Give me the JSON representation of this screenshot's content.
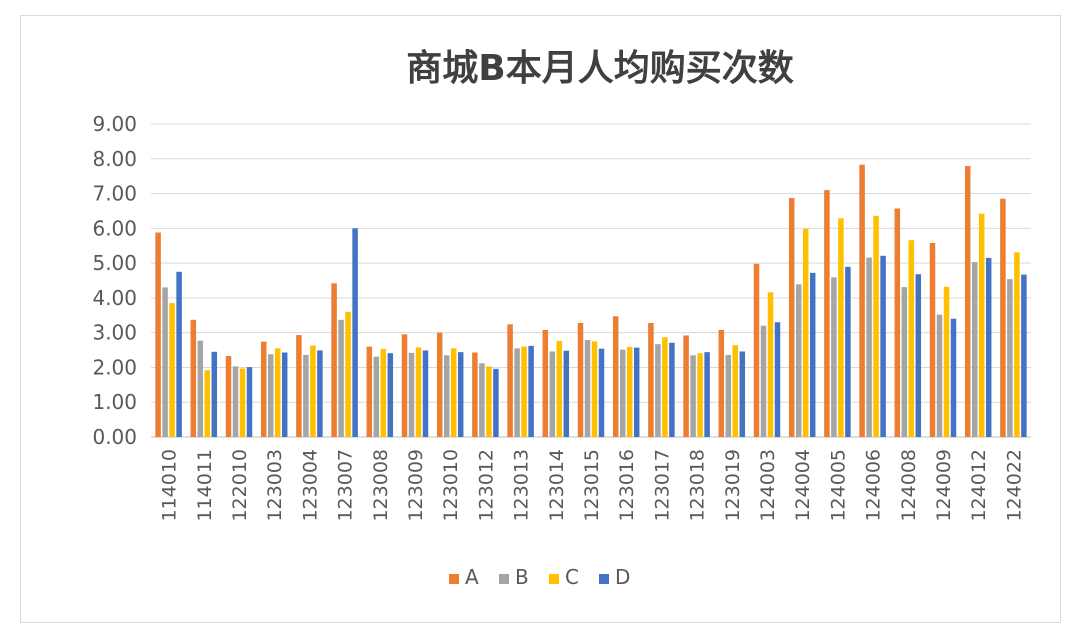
{
  "chart_data": {
    "type": "bar",
    "title": "商城B本月人均购买次数",
    "categories": [
      "114010",
      "114011",
      "122010",
      "123003",
      "123004",
      "123007",
      "123008",
      "123009",
      "123010",
      "123012",
      "123013",
      "123014",
      "123015",
      "123016",
      "123017",
      "123018",
      "123019",
      "124003",
      "124004",
      "124005",
      "124006",
      "124008",
      "124009",
      "124012",
      "124022"
    ],
    "series": [
      {
        "name": "A",
        "color": "#ED7D31",
        "values": [
          5.88,
          3.37,
          2.33,
          2.74,
          2.93,
          4.42,
          2.6,
          2.95,
          3.0,
          2.43,
          3.24,
          3.08,
          3.28,
          3.47,
          3.28,
          2.92,
          3.08,
          4.98,
          6.87,
          7.1,
          7.83,
          6.57,
          5.58,
          7.79,
          6.85
        ]
      },
      {
        "name": "B",
        "color": "#A5A5A5",
        "values": [
          4.3,
          2.77,
          2.03,
          2.38,
          2.36,
          3.37,
          2.31,
          2.42,
          2.35,
          2.12,
          2.55,
          2.46,
          2.79,
          2.51,
          2.67,
          2.35,
          2.36,
          3.2,
          4.39,
          4.59,
          5.16,
          4.31,
          3.52,
          5.03,
          4.54
        ]
      },
      {
        "name": "C",
        "color": "#FFC000",
        "values": [
          3.85,
          1.92,
          1.97,
          2.55,
          2.63,
          3.6,
          2.53,
          2.58,
          2.55,
          2.03,
          2.6,
          2.76,
          2.75,
          2.59,
          2.87,
          2.41,
          2.64,
          4.16,
          5.99,
          6.29,
          6.36,
          5.66,
          4.32,
          6.42,
          5.31
        ]
      },
      {
        "name": "D",
        "color": "#4472C4",
        "values": [
          4.75,
          2.45,
          2.01,
          2.43,
          2.49,
          6.0,
          2.41,
          2.49,
          2.44,
          1.96,
          2.62,
          2.48,
          2.54,
          2.57,
          2.71,
          2.44,
          2.46,
          3.3,
          4.72,
          4.89,
          5.21,
          4.68,
          3.4,
          5.15,
          4.67
        ]
      }
    ],
    "ylim": [
      0,
      9
    ],
    "yticks": [
      "0.00",
      "1.00",
      "2.00",
      "3.00",
      "4.00",
      "5.00",
      "6.00",
      "7.00",
      "8.00",
      "9.00"
    ],
    "grid": true,
    "legend_position": "bottom"
  }
}
